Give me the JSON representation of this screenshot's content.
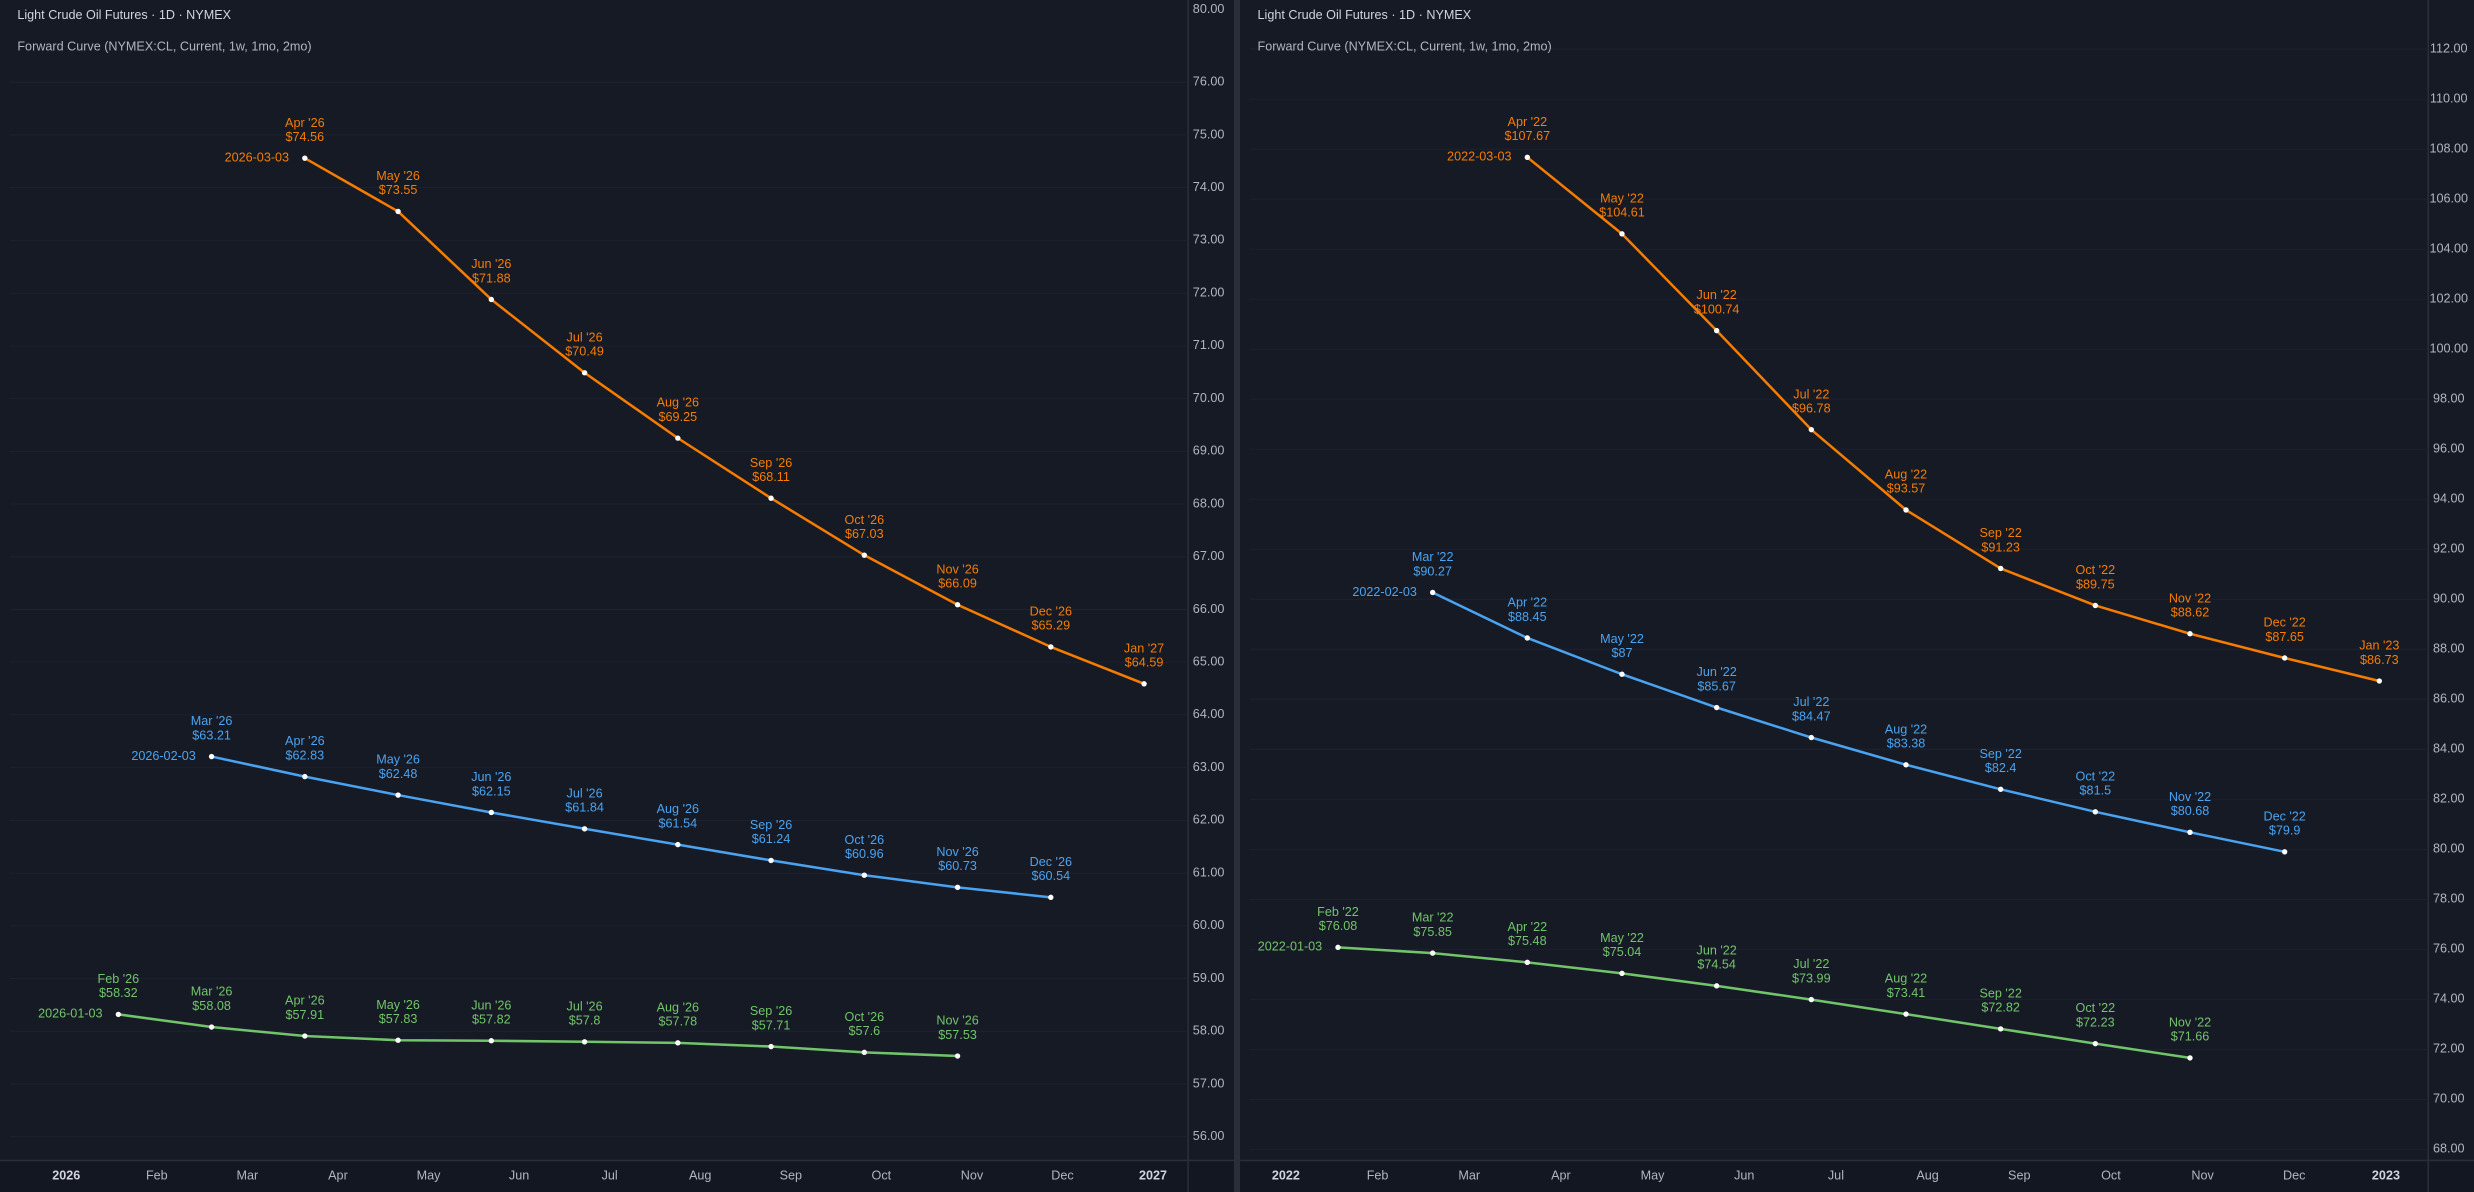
{
  "chart_data": [
    {
      "type": "line",
      "title": "Light Crude Oil Futures · 1D · NYMEX",
      "subtitle": "Forward Curve (NYMEX:CL, Current, 1w, 1mo, 2mo)",
      "scale_top_label": "80.00",
      "categories": [
        "Feb '26",
        "Mar '26",
        "Apr '26",
        "May '26",
        "Jun '26",
        "Jul '26",
        "Aug '26",
        "Sep '26",
        "Oct '26",
        "Nov '26",
        "Dec '26",
        "Jan '27"
      ],
      "xtick_labels": [
        "2026",
        "Feb",
        "Mar",
        "Apr",
        "May",
        "Jun",
        "Jul",
        "Aug",
        "Sep",
        "Oct",
        "Nov",
        "Dec",
        "2027"
      ],
      "ylim": [
        55.55,
        77.56
      ],
      "yticks": [
        {
          "value": 56,
          "label": "56.00"
        },
        {
          "value": 57,
          "label": "57.00"
        },
        {
          "value": 58,
          "label": "58.00"
        },
        {
          "value": 59,
          "label": "59.00"
        },
        {
          "value": 60,
          "label": "60.00"
        },
        {
          "value": 61,
          "label": "61.00"
        },
        {
          "value": 62,
          "label": "62.00"
        },
        {
          "value": 63,
          "label": "63.00"
        },
        {
          "value": 64,
          "label": "64.00"
        },
        {
          "value": 65,
          "label": "65.00"
        },
        {
          "value": 66,
          "label": "66.00"
        },
        {
          "value": 67,
          "label": "67.00"
        },
        {
          "value": 68,
          "label": "68.00"
        },
        {
          "value": 69,
          "label": "69.00"
        },
        {
          "value": 70,
          "label": "70.00"
        },
        {
          "value": 71,
          "label": "71.00"
        },
        {
          "value": 72,
          "label": "72.00"
        },
        {
          "value": 73,
          "label": "73.00"
        },
        {
          "value": 74,
          "label": "74.00"
        },
        {
          "value": 75,
          "label": "75.00"
        },
        {
          "value": 76,
          "label": "76.00"
        }
      ],
      "grid": true,
      "series": [
        {
          "name": "2026-01-03",
          "color": "#72c46b",
          "values": [
            58.32,
            58.08,
            57.91,
            57.83,
            57.82,
            57.8,
            57.78,
            57.71,
            57.6,
            57.53,
            null,
            null
          ],
          "value_labels": [
            "$58.32",
            "$58.08",
            "$57.91",
            "$57.83",
            "$57.82",
            "$57.8",
            "$57.78",
            "$57.71",
            "$57.6",
            "$57.53",
            null,
            null
          ]
        },
        {
          "name": "2026-02-03",
          "color": "#4aa3f0",
          "values": [
            null,
            63.21,
            62.83,
            62.48,
            62.15,
            61.84,
            61.54,
            61.24,
            60.96,
            60.73,
            60.54,
            null
          ],
          "value_labels": [
            null,
            "$63.21",
            "$62.83",
            "$62.48",
            "$62.15",
            "$61.84",
            "$61.54",
            "$61.24",
            "$60.96",
            "$60.73",
            "$60.54",
            null
          ]
        },
        {
          "name": "2026-03-03",
          "color": "#f57c00",
          "values": [
            null,
            null,
            74.56,
            73.55,
            71.88,
            70.49,
            69.25,
            68.11,
            67.03,
            66.09,
            65.29,
            64.59
          ],
          "value_labels": [
            null,
            null,
            "$74.56",
            "$73.55",
            "$71.88",
            "$70.49",
            "$69.25",
            "$68.11",
            "$67.03",
            "$66.09",
            "$65.29",
            "$64.59"
          ]
        }
      ]
    },
    {
      "type": "line",
      "title": "Light Crude Oil Futures · 1D · NYMEX",
      "subtitle": "Forward Curve (NYMEX:CL, Current, 1w, 1mo, 2mo)",
      "categories": [
        "Feb '22",
        "Mar '22",
        "Apr '22",
        "May '22",
        "Jun '22",
        "Jul '22",
        "Aug '22",
        "Sep '22",
        "Oct '22",
        "Nov '22",
        "Dec '22",
        "Jan '23"
      ],
      "xtick_labels": [
        "2022",
        "Feb",
        "Mar",
        "Apr",
        "May",
        "Jun",
        "Jul",
        "Aug",
        "Sep",
        "Oct",
        "Nov",
        "Dec",
        "2023"
      ],
      "ylim": [
        67.56,
        113.96
      ],
      "yticks": [
        {
          "value": 68,
          "label": "68.00"
        },
        {
          "value": 70,
          "label": "70.00"
        },
        {
          "value": 72,
          "label": "72.00"
        },
        {
          "value": 74,
          "label": "74.00"
        },
        {
          "value": 76,
          "label": "76.00"
        },
        {
          "value": 78,
          "label": "78.00"
        },
        {
          "value": 80,
          "label": "80.00"
        },
        {
          "value": 82,
          "label": "82.00"
        },
        {
          "value": 84,
          "label": "84.00"
        },
        {
          "value": 86,
          "label": "86.00"
        },
        {
          "value": 88,
          "label": "88.00"
        },
        {
          "value": 90,
          "label": "90.00"
        },
        {
          "value": 92,
          "label": "92.00"
        },
        {
          "value": 94,
          "label": "94.00"
        },
        {
          "value": 96,
          "label": "96.00"
        },
        {
          "value": 98,
          "label": "98.00"
        },
        {
          "value": 100,
          "label": "100.00"
        },
        {
          "value": 102,
          "label": "102.00"
        },
        {
          "value": 104,
          "label": "104.00"
        },
        {
          "value": 106,
          "label": "106.00"
        },
        {
          "value": 108,
          "label": "108.00"
        },
        {
          "value": 110,
          "label": "110.00"
        },
        {
          "value": 112,
          "label": "112.00"
        }
      ],
      "grid": true,
      "series": [
        {
          "name": "2022-01-03",
          "color": "#72c46b",
          "values": [
            76.08,
            75.85,
            75.48,
            75.04,
            74.54,
            73.99,
            73.41,
            72.82,
            72.23,
            71.66,
            null,
            null
          ],
          "value_labels": [
            "$76.08",
            "$75.85",
            "$75.48",
            "$75.04",
            "$74.54",
            "$73.99",
            "$73.41",
            "$72.82",
            "$72.23",
            "$71.66",
            null,
            null
          ]
        },
        {
          "name": "2022-02-03",
          "color": "#4aa3f0",
          "values": [
            null,
            90.27,
            88.45,
            87,
            85.67,
            84.47,
            83.38,
            82.4,
            81.5,
            80.68,
            79.9,
            null
          ],
          "value_labels": [
            null,
            "$90.27",
            "$88.45",
            "$87",
            "$85.67",
            "$84.47",
            "$83.38",
            "$82.4",
            "$81.5",
            "$80.68",
            "$79.9",
            null
          ]
        },
        {
          "name": "2022-03-03",
          "color": "#f57c00",
          "values": [
            null,
            null,
            107.67,
            104.61,
            100.74,
            96.78,
            93.57,
            91.23,
            89.75,
            88.62,
            87.65,
            86.73
          ],
          "value_labels": [
            null,
            null,
            "$107.67",
            "$104.61",
            "$100.74",
            "$96.78",
            "$93.57",
            "$91.23",
            "$89.75",
            "$88.62",
            "$87.65",
            "$86.73"
          ]
        }
      ]
    }
  ]
}
